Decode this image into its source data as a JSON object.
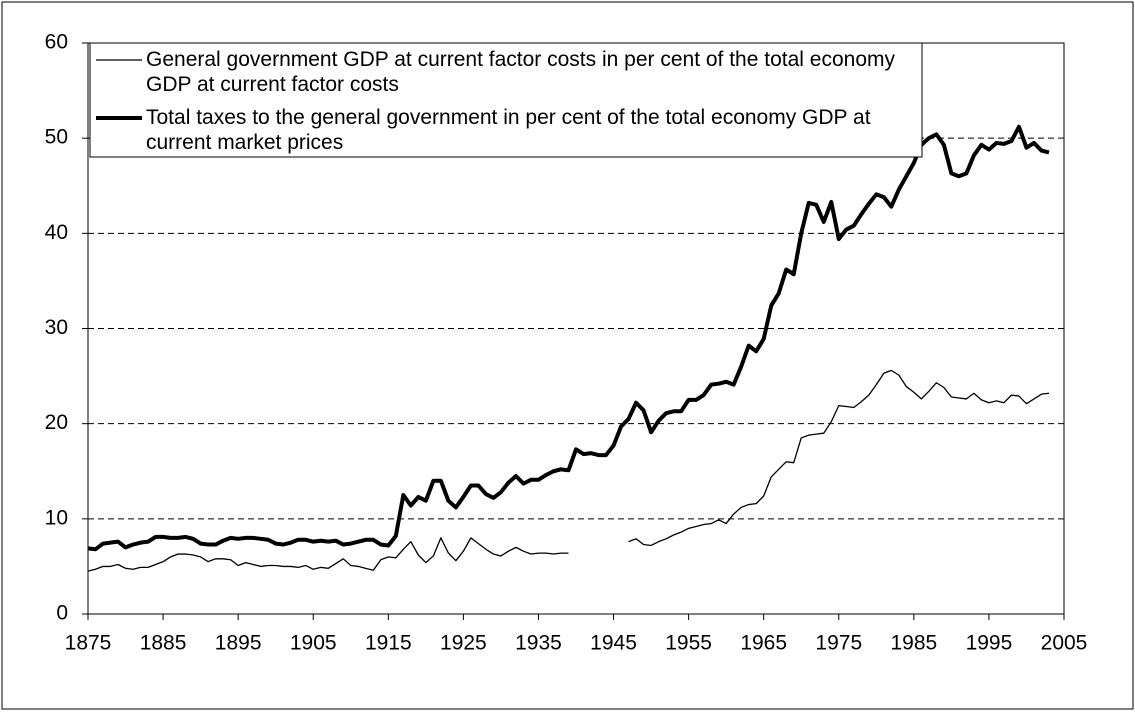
{
  "chart_data": {
    "type": "line",
    "x": [
      1875,
      1876,
      1877,
      1878,
      1879,
      1880,
      1881,
      1882,
      1883,
      1884,
      1885,
      1886,
      1887,
      1888,
      1889,
      1890,
      1891,
      1892,
      1893,
      1894,
      1895,
      1896,
      1897,
      1898,
      1899,
      1900,
      1901,
      1902,
      1903,
      1904,
      1905,
      1906,
      1907,
      1908,
      1909,
      1910,
      1911,
      1912,
      1913,
      1914,
      1915,
      1916,
      1917,
      1918,
      1919,
      1920,
      1921,
      1922,
      1923,
      1924,
      1925,
      1926,
      1927,
      1928,
      1929,
      1930,
      1931,
      1932,
      1933,
      1934,
      1935,
      1936,
      1937,
      1938,
      1939,
      1940,
      1941,
      1942,
      1943,
      1944,
      1945,
      1946,
      1947,
      1948,
      1949,
      1950,
      1951,
      1952,
      1953,
      1954,
      1955,
      1956,
      1957,
      1958,
      1959,
      1960,
      1961,
      1962,
      1963,
      1964,
      1965,
      1966,
      1967,
      1968,
      1969,
      1970,
      1971,
      1972,
      1973,
      1974,
      1975,
      1976,
      1977,
      1978,
      1979,
      1980,
      1981,
      1982,
      1983,
      1984,
      1985,
      1986,
      1987,
      1988,
      1989,
      1990,
      1991,
      1992,
      1993,
      1994,
      1995,
      1996,
      1997,
      1998,
      1999,
      2000,
      2001,
      2002,
      2003
    ],
    "series": [
      {
        "name": "General government GDP at current factor costs in per cent of the total economy GDP at current factor costs",
        "color": "#000000",
        "width": 1.3,
        "values": [
          4.5,
          4.7,
          5.0,
          5.0,
          5.2,
          4.8,
          4.7,
          4.9,
          4.9,
          5.2,
          5.5,
          6.0,
          6.3,
          6.3,
          6.2,
          6.0,
          5.5,
          5.8,
          5.8,
          5.7,
          5.1,
          5.4,
          5.2,
          5.0,
          5.1,
          5.1,
          5.0,
          5.0,
          4.9,
          5.1,
          4.7,
          4.9,
          4.8,
          5.3,
          5.8,
          5.1,
          5.0,
          4.8,
          4.6,
          5.7,
          6.0,
          5.9,
          6.8,
          7.6,
          6.2,
          5.4,
          6.1,
          8.0,
          6.4,
          5.6,
          6.6,
          8.0,
          7.4,
          6.8,
          6.3,
          6.1,
          6.6,
          7.0,
          6.6,
          6.3,
          6.4,
          6.4,
          6.3,
          6.4,
          6.4,
          null,
          null,
          null,
          null,
          null,
          null,
          null,
          7.6,
          7.9,
          7.3,
          7.2,
          7.6,
          7.9,
          8.3,
          8.6,
          9.0,
          9.2,
          9.4,
          9.5,
          9.9,
          9.5,
          10.5,
          11.2,
          11.5,
          11.6,
          12.4,
          14.4,
          15.2,
          16.0,
          15.9,
          18.5,
          18.8,
          18.9,
          19.0,
          20.2,
          21.9,
          21.8,
          21.7,
          22.3,
          23.0,
          24.1,
          25.3,
          25.6,
          25.1,
          23.9,
          23.3,
          22.6,
          23.4,
          24.3,
          23.8,
          22.8,
          22.7,
          22.6,
          23.2,
          22.5,
          22.2,
          22.4,
          22.2,
          23.0,
          22.9,
          22.1,
          22.6,
          23.1,
          23.2
        ]
      },
      {
        "name": "Total taxes to the general government in per cent of the total economy GDP at current market prices",
        "color": "#000000",
        "width": 4,
        "values": [
          6.9,
          6.8,
          7.4,
          7.5,
          7.6,
          7.0,
          7.3,
          7.5,
          7.6,
          8.1,
          8.1,
          8.0,
          8.0,
          8.1,
          7.9,
          7.4,
          7.3,
          7.3,
          7.7,
          8.0,
          7.9,
          8.0,
          8.0,
          7.9,
          7.8,
          7.4,
          7.3,
          7.5,
          7.8,
          7.8,
          7.6,
          7.7,
          7.6,
          7.7,
          7.3,
          7.4,
          7.6,
          7.8,
          7.8,
          7.3,
          7.2,
          8.2,
          12.5,
          11.4,
          12.3,
          11.9,
          14.0,
          14.0,
          11.9,
          11.2,
          12.3,
          13.5,
          13.5,
          12.6,
          12.2,
          12.8,
          13.8,
          14.5,
          13.7,
          14.1,
          14.1,
          14.6,
          15.0,
          15.2,
          15.1,
          17.3,
          16.8,
          16.9,
          16.7,
          16.7,
          17.7,
          19.7,
          20.5,
          22.2,
          21.4,
          19.1,
          20.3,
          21.1,
          21.3,
          21.3,
          22.5,
          22.5,
          23.0,
          24.1,
          24.2,
          24.4,
          24.1,
          26.0,
          28.2,
          27.6,
          28.9,
          32.4,
          33.7,
          36.2,
          35.7,
          40.0,
          43.2,
          43.0,
          41.2,
          43.3,
          39.4,
          40.4,
          40.8,
          42.0,
          43.1,
          44.1,
          43.8,
          42.8,
          44.6,
          46.0,
          47.4,
          49.3,
          50.0,
          50.4,
          49.3,
          46.3,
          46.0,
          46.3,
          48.2,
          49.3,
          48.8,
          49.5,
          49.4,
          49.7,
          51.2,
          49.0,
          49.5,
          48.7,
          48.5
        ]
      }
    ],
    "xlim": [
      1875,
      2005
    ],
    "xticks": [
      1875,
      1885,
      1895,
      1905,
      1915,
      1925,
      1935,
      1945,
      1955,
      1965,
      1975,
      1985,
      1995,
      2005
    ],
    "ylim": [
      0,
      60
    ],
    "yticks": [
      0,
      10,
      20,
      30,
      40,
      50,
      60
    ],
    "grid": true,
    "legend": "upper left"
  }
}
